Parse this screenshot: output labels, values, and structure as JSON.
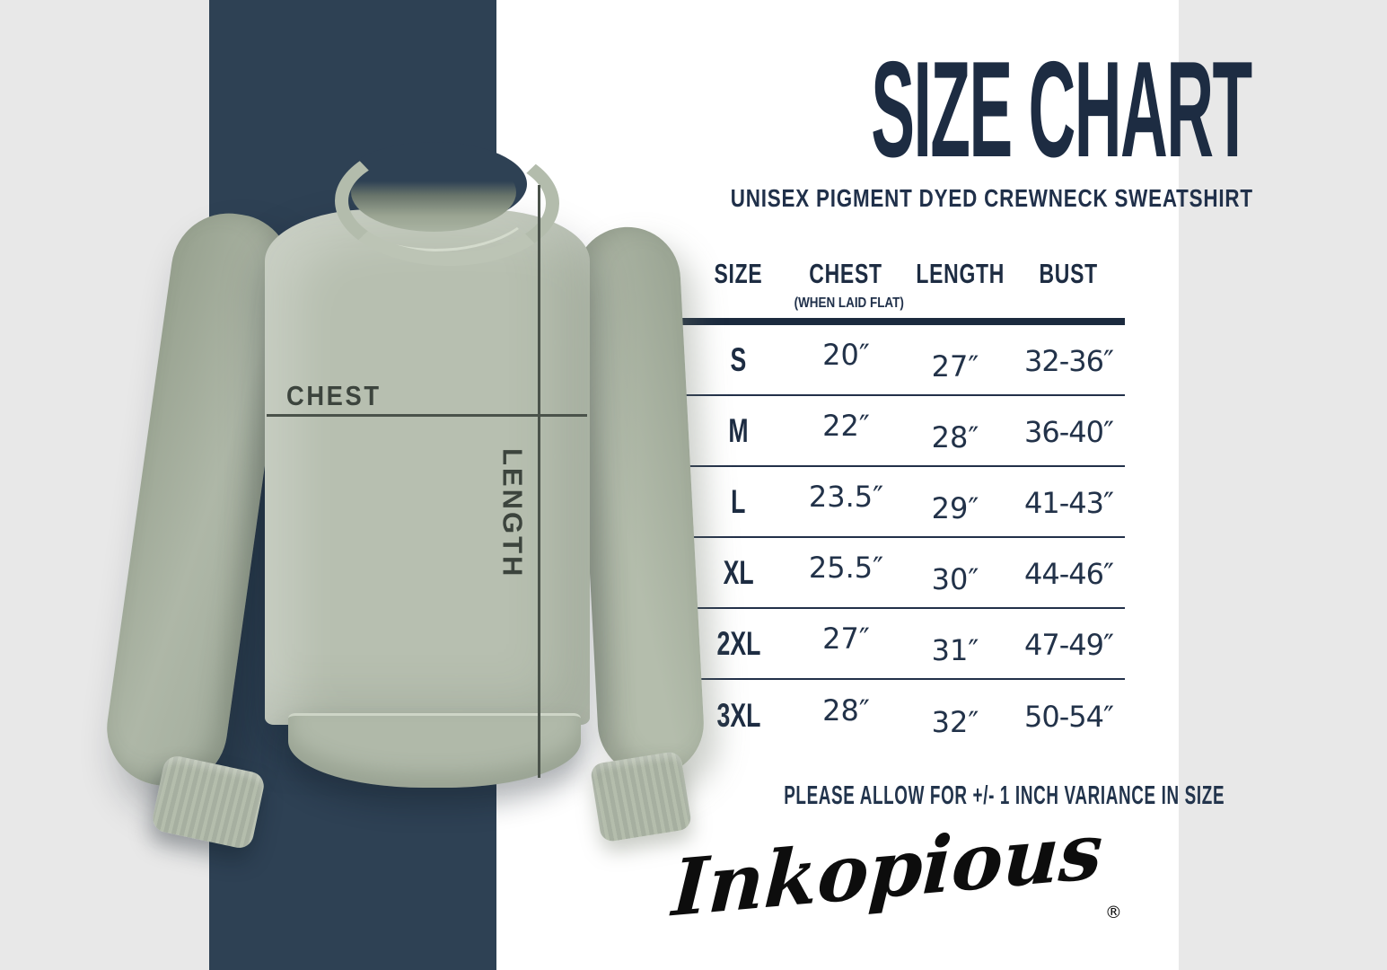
{
  "header": {
    "title": "SIZE CHART",
    "subtitle": "UNISEX PIGMENT DYED CREWNECK SWEATSHIRT"
  },
  "garment": {
    "chest_label": "CHEST",
    "length_label": "LENGTH"
  },
  "table": {
    "columns": [
      "SIZE",
      "CHEST",
      "LENGTH",
      "BUST"
    ],
    "chest_subnote": "(WHEN LAID FLAT)",
    "rows": [
      {
        "size": "S",
        "chest": "20″",
        "length": "27″",
        "bust": "32-36″"
      },
      {
        "size": "M",
        "chest": "22″",
        "length": "28″",
        "bust": "36-40″"
      },
      {
        "size": "L",
        "chest": "23.5″",
        "length": "29″",
        "bust": "41-43″"
      },
      {
        "size": "XL",
        "chest": "25.5″",
        "length": "30″",
        "bust": "44-46″"
      },
      {
        "size": "2XL",
        "chest": "27″",
        "length": "31″",
        "bust": "47-49″"
      },
      {
        "size": "3XL",
        "chest": "28″",
        "length": "32″",
        "bust": "50-54″"
      }
    ]
  },
  "note": {
    "text": "PLEASE ALLOW FOR +/- 1 INCH VARIANCE IN SIZE"
  },
  "brand": {
    "logo_text": "Inkopious",
    "registered": "®"
  },
  "colors": {
    "navy_panel": "#2e4154",
    "ink_navy": "#1d2c42",
    "table_line": "#1b2a3e",
    "annotation": "#3c443d",
    "sweatshirt_sage": "#b7bfb0",
    "logo_black": "#0d0d0d",
    "background": "#ffffff"
  },
  "chart_data": {
    "type": "table",
    "title": "SIZE CHART",
    "subtitle": "UNISEX PIGMENT DYED CREWNECK SWEATSHIRT",
    "columns": [
      "SIZE",
      "CHEST (WHEN LAID FLAT)",
      "LENGTH",
      "BUST"
    ],
    "rows": [
      [
        "S",
        "20″",
        "27″",
        "32-36″"
      ],
      [
        "M",
        "22″",
        "28″",
        "36-40″"
      ],
      [
        "L",
        "23.5″",
        "29″",
        "41-43″"
      ],
      [
        "XL",
        "25.5″",
        "30″",
        "44-46″"
      ],
      [
        "2XL",
        "27″",
        "31″",
        "47-49″"
      ],
      [
        "3XL",
        "28″",
        "32″",
        "50-54″"
      ]
    ],
    "annotations": [
      "CHEST",
      "LENGTH",
      "PLEASE ALLOW FOR +/- 1 INCH VARIANCE IN SIZE"
    ],
    "brand": "Inkopious®"
  }
}
